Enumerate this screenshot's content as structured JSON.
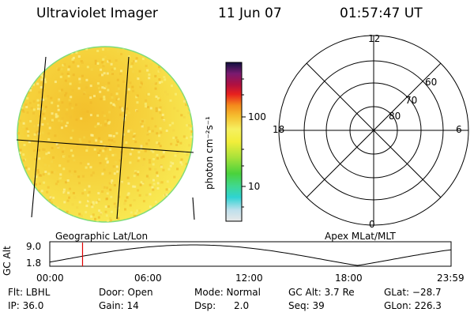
{
  "header": {
    "instrument": "Ultraviolet Imager",
    "date": "11 Jun 07",
    "time": "01:57:47 UT"
  },
  "colorbar": {
    "unit_label": "photon cm⁻²s⁻¹",
    "ticks": [
      "100",
      "10"
    ]
  },
  "panels": {
    "left_label": "Geographic Lat/Lon",
    "right_label": "Apex MLat/MLT"
  },
  "polar": {
    "mlt_labels": [
      "12",
      "18",
      "6",
      "0"
    ],
    "lat_labels": [
      "60",
      "70",
      "80"
    ]
  },
  "timeline": {
    "ylabel": "GC Alt",
    "ymax": "9.0",
    "ymin": "1.8",
    "xticks": [
      "00:00",
      "06:00",
      "12:00",
      "18:00",
      "23:59"
    ],
    "marker_time_hours": 1.96
  },
  "info": {
    "row1": [
      "Flt: LBHL",
      "Door: Open",
      "Mode: Normal",
      "GC Alt: 3.7 Re",
      "GLat: −28.7"
    ],
    "row2": [
      "IP: 36.0",
      "Gain: 14",
      "Dsp:      2.0",
      "Seq: 39",
      "GLon: 226.3"
    ]
  },
  "colors": {
    "disk_main": "#f7e84a",
    "disk_orange": "#f4c430",
    "disk_edge": "#8de08a",
    "marker": "#e00000"
  }
}
